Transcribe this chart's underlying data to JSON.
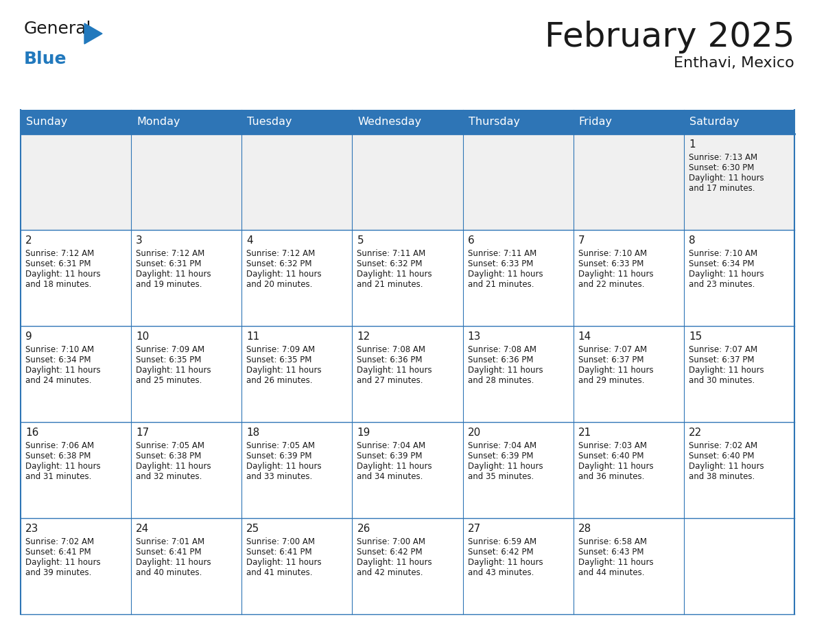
{
  "title": "February 2025",
  "subtitle": "Enthavi, Mexico",
  "header_bg": "#2E75B6",
  "header_text_color": "#FFFFFF",
  "cell_bg_white": "#FFFFFF",
  "cell_bg_gray": "#F0F0F0",
  "border_color": "#2E75B6",
  "border_color_dark": "#1F4E79",
  "day_names": [
    "Sunday",
    "Monday",
    "Tuesday",
    "Wednesday",
    "Thursday",
    "Friday",
    "Saturday"
  ],
  "title_color": "#1A1A1A",
  "subtitle_color": "#1A1A1A",
  "day_number_color": "#1A1A1A",
  "text_color": "#1A1A1A",
  "calendar": [
    [
      null,
      null,
      null,
      null,
      null,
      null,
      1
    ],
    [
      2,
      3,
      4,
      5,
      6,
      7,
      8
    ],
    [
      9,
      10,
      11,
      12,
      13,
      14,
      15
    ],
    [
      16,
      17,
      18,
      19,
      20,
      21,
      22
    ],
    [
      23,
      24,
      25,
      26,
      27,
      28,
      null
    ]
  ],
  "row_bg": [
    "gray",
    "white",
    "white",
    "white",
    "white"
  ],
  "sun_data": {
    "1": {
      "sunrise": "7:13 AM",
      "sunset": "6:30 PM",
      "hours": "11",
      "minutes": "17"
    },
    "2": {
      "sunrise": "7:12 AM",
      "sunset": "6:31 PM",
      "hours": "11",
      "minutes": "18"
    },
    "3": {
      "sunrise": "7:12 AM",
      "sunset": "6:31 PM",
      "hours": "11",
      "minutes": "19"
    },
    "4": {
      "sunrise": "7:12 AM",
      "sunset": "6:32 PM",
      "hours": "11",
      "minutes": "20"
    },
    "5": {
      "sunrise": "7:11 AM",
      "sunset": "6:32 PM",
      "hours": "11",
      "minutes": "21"
    },
    "6": {
      "sunrise": "7:11 AM",
      "sunset": "6:33 PM",
      "hours": "11",
      "minutes": "21"
    },
    "7": {
      "sunrise": "7:10 AM",
      "sunset": "6:33 PM",
      "hours": "11",
      "minutes": "22"
    },
    "8": {
      "sunrise": "7:10 AM",
      "sunset": "6:34 PM",
      "hours": "11",
      "minutes": "23"
    },
    "9": {
      "sunrise": "7:10 AM",
      "sunset": "6:34 PM",
      "hours": "11",
      "minutes": "24"
    },
    "10": {
      "sunrise": "7:09 AM",
      "sunset": "6:35 PM",
      "hours": "11",
      "minutes": "25"
    },
    "11": {
      "sunrise": "7:09 AM",
      "sunset": "6:35 PM",
      "hours": "11",
      "minutes": "26"
    },
    "12": {
      "sunrise": "7:08 AM",
      "sunset": "6:36 PM",
      "hours": "11",
      "minutes": "27"
    },
    "13": {
      "sunrise": "7:08 AM",
      "sunset": "6:36 PM",
      "hours": "11",
      "minutes": "28"
    },
    "14": {
      "sunrise": "7:07 AM",
      "sunset": "6:37 PM",
      "hours": "11",
      "minutes": "29"
    },
    "15": {
      "sunrise": "7:07 AM",
      "sunset": "6:37 PM",
      "hours": "11",
      "minutes": "30"
    },
    "16": {
      "sunrise": "7:06 AM",
      "sunset": "6:38 PM",
      "hours": "11",
      "minutes": "31"
    },
    "17": {
      "sunrise": "7:05 AM",
      "sunset": "6:38 PM",
      "hours": "11",
      "minutes": "32"
    },
    "18": {
      "sunrise": "7:05 AM",
      "sunset": "6:39 PM",
      "hours": "11",
      "minutes": "33"
    },
    "19": {
      "sunrise": "7:04 AM",
      "sunset": "6:39 PM",
      "hours": "11",
      "minutes": "34"
    },
    "20": {
      "sunrise": "7:04 AM",
      "sunset": "6:39 PM",
      "hours": "11",
      "minutes": "35"
    },
    "21": {
      "sunrise": "7:03 AM",
      "sunset": "6:40 PM",
      "hours": "11",
      "minutes": "36"
    },
    "22": {
      "sunrise": "7:02 AM",
      "sunset": "6:40 PM",
      "hours": "11",
      "minutes": "38"
    },
    "23": {
      "sunrise": "7:02 AM",
      "sunset": "6:41 PM",
      "hours": "11",
      "minutes": "39"
    },
    "24": {
      "sunrise": "7:01 AM",
      "sunset": "6:41 PM",
      "hours": "11",
      "minutes": "40"
    },
    "25": {
      "sunrise": "7:00 AM",
      "sunset": "6:41 PM",
      "hours": "11",
      "minutes": "41"
    },
    "26": {
      "sunrise": "7:00 AM",
      "sunset": "6:42 PM",
      "hours": "11",
      "minutes": "42"
    },
    "27": {
      "sunrise": "6:59 AM",
      "sunset": "6:42 PM",
      "hours": "11",
      "minutes": "43"
    },
    "28": {
      "sunrise": "6:58 AM",
      "sunset": "6:43 PM",
      "hours": "11",
      "minutes": "44"
    }
  }
}
